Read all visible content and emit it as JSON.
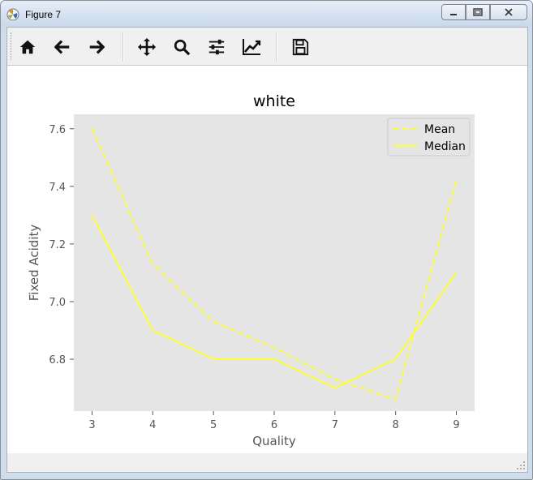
{
  "window": {
    "title": "Figure 7"
  },
  "toolbar": {
    "icons": [
      "home-icon",
      "back-arrow-icon",
      "forward-arrow-icon",
      "pan-icon",
      "zoom-icon",
      "configure-subplots-icon",
      "edit-axis-icon",
      "save-icon"
    ]
  },
  "chart_data": {
    "type": "line",
    "title": "white",
    "xlabel": "Quality",
    "ylabel": "Fixed Acidity",
    "x": [
      3,
      4,
      5,
      6,
      7,
      8,
      9
    ],
    "xlim": [
      2.7,
      9.3
    ],
    "ylim": [
      6.62,
      7.65
    ],
    "xticks": [
      "3",
      "4",
      "5",
      "6",
      "7",
      "8",
      "9"
    ],
    "yticks": [
      "6.8",
      "7.0",
      "7.2",
      "7.4",
      "7.6"
    ],
    "grid": false,
    "legend_position": "top-right",
    "background": "#e5e5e5",
    "series": [
      {
        "name": "Mean",
        "style": "dashed",
        "color": "#ffff33",
        "values": [
          7.6,
          7.13,
          6.93,
          6.84,
          6.73,
          6.66,
          7.42
        ]
      },
      {
        "name": "Median",
        "style": "solid",
        "color": "#ffff33",
        "values": [
          7.3,
          6.9,
          6.8,
          6.8,
          6.7,
          6.8,
          7.1
        ]
      }
    ]
  }
}
